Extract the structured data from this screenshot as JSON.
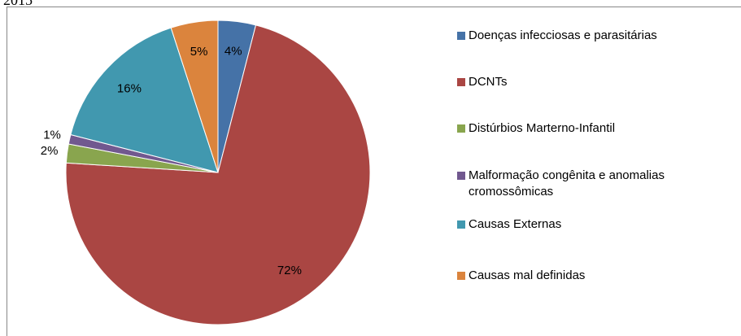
{
  "chart_data": {
    "type": "pie",
    "title": "2015",
    "categories": [
      "Doenças infecciosas e parasitárias",
      "DCNTs",
      "Distúrbios Marterno-Infantil",
      "Malformação congênita e anomalias cromossômicas",
      "Causas Externas",
      "Causas mal definidas"
    ],
    "values": [
      4,
      72,
      2,
      1,
      16,
      5
    ],
    "value_labels": [
      "4%",
      "72%",
      "2%",
      "1%",
      "16%",
      "5%"
    ],
    "colors": [
      "#4572a7",
      "#aa4643",
      "#89a54e",
      "#71588f",
      "#4198af",
      "#db843d"
    ],
    "legend": "right"
  }
}
